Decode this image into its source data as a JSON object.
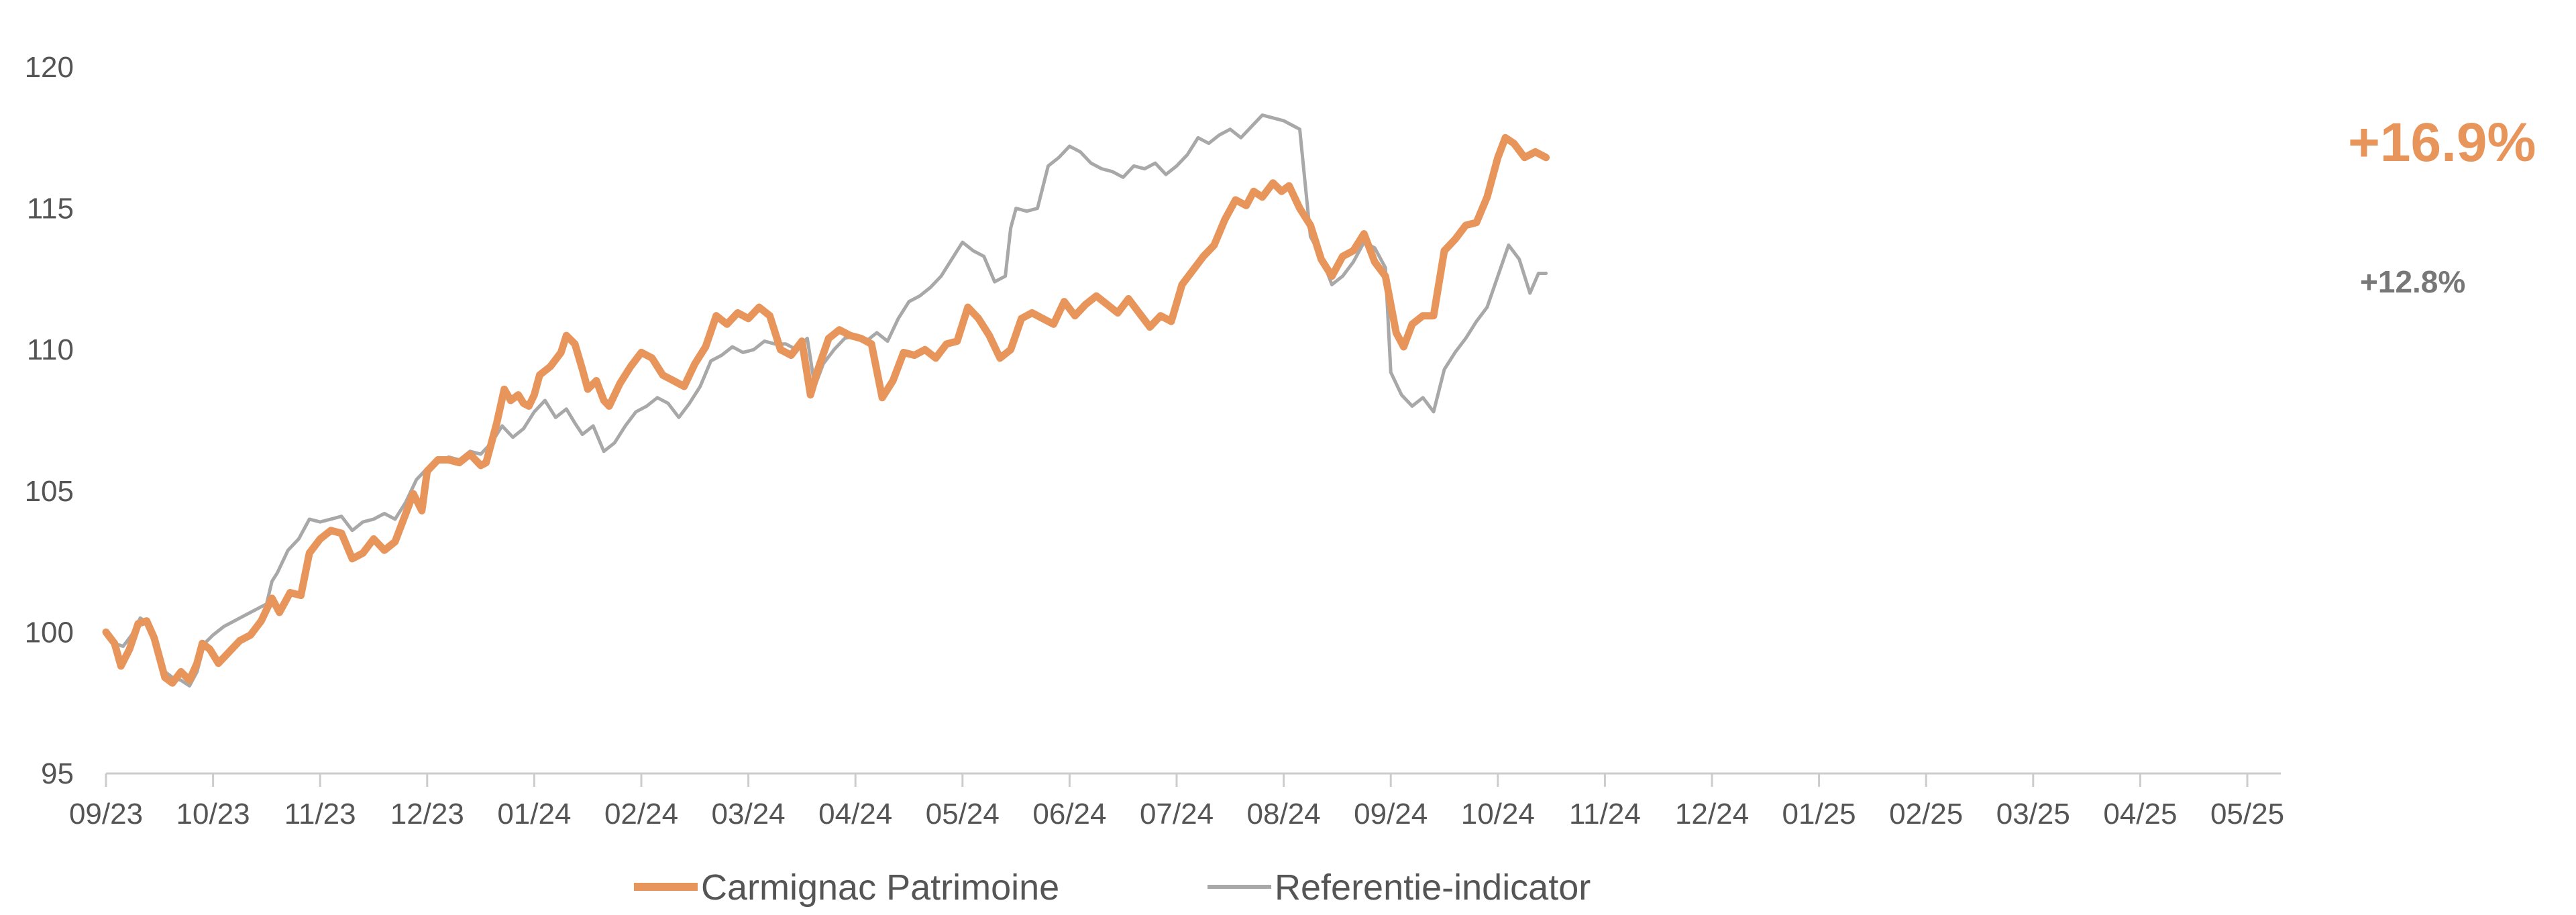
{
  "chart_data": {
    "type": "line",
    "title": "",
    "xlabel": "",
    "ylabel": "",
    "ylim": [
      95,
      120
    ],
    "yticks": [
      "95",
      "100",
      "105",
      "110",
      "115",
      "120"
    ],
    "xticks": [
      "09/23",
      "10/23",
      "11/23",
      "12/23",
      "01/24",
      "02/24",
      "03/24",
      "04/24",
      "05/24",
      "06/24",
      "07/24",
      "08/24",
      "09/24",
      "10/24",
      "11/24",
      "12/24",
      "01/25",
      "02/25",
      "03/25",
      "04/25",
      "05/25"
    ],
    "grid": false,
    "legend": "bottom",
    "series": [
      {
        "name": "Carmignac Patrimoine",
        "color": "#E8955C",
        "end_label": "+16.9%",
        "points": [
          [
            0,
            100
          ],
          [
            0.08,
            99.6
          ],
          [
            0.14,
            98.8
          ],
          [
            0.22,
            99.4
          ],
          [
            0.3,
            100.3
          ],
          [
            0.38,
            100.4
          ],
          [
            0.45,
            99.8
          ],
          [
            0.55,
            98.4
          ],
          [
            0.62,
            98.2
          ],
          [
            0.7,
            98.6
          ],
          [
            0.78,
            98.3
          ],
          [
            0.85,
            98.9
          ],
          [
            0.9,
            99.6
          ],
          [
            0.97,
            99.4
          ],
          [
            1.05,
            98.9
          ],
          [
            1.15,
            99.3
          ],
          [
            1.25,
            99.7
          ],
          [
            1.35,
            99.9
          ],
          [
            1.45,
            100.4
          ],
          [
            1.55,
            101.2
          ],
          [
            1.62,
            100.7
          ],
          [
            1.72,
            101.4
          ],
          [
            1.82,
            101.3
          ],
          [
            1.9,
            102.8
          ],
          [
            2.0,
            103.3
          ],
          [
            2.1,
            103.6
          ],
          [
            2.2,
            103.5
          ],
          [
            2.3,
            102.6
          ],
          [
            2.4,
            102.8
          ],
          [
            2.5,
            103.3
          ],
          [
            2.6,
            102.9
          ],
          [
            2.7,
            103.2
          ],
          [
            2.8,
            104.2
          ],
          [
            2.87,
            104.9
          ],
          [
            2.95,
            104.3
          ],
          [
            3.0,
            105.7
          ],
          [
            3.1,
            106.1
          ],
          [
            3.2,
            106.1
          ],
          [
            3.3,
            106.0
          ],
          [
            3.4,
            106.3
          ],
          [
            3.5,
            105.9
          ],
          [
            3.55,
            106.0
          ],
          [
            3.65,
            107.4
          ],
          [
            3.72,
            108.6
          ],
          [
            3.78,
            108.2
          ],
          [
            3.85,
            108.4
          ],
          [
            3.9,
            108.1
          ],
          [
            3.95,
            108.0
          ],
          [
            4.0,
            108.4
          ],
          [
            4.05,
            109.1
          ],
          [
            4.15,
            109.4
          ],
          [
            4.25,
            109.9
          ],
          [
            4.3,
            110.5
          ],
          [
            4.38,
            110.2
          ],
          [
            4.45,
            109.3
          ],
          [
            4.5,
            108.6
          ],
          [
            4.58,
            108.9
          ],
          [
            4.65,
            108.2
          ],
          [
            4.7,
            108.0
          ],
          [
            4.8,
            108.8
          ],
          [
            4.9,
            109.4
          ],
          [
            5.0,
            109.9
          ],
          [
            5.1,
            109.7
          ],
          [
            5.2,
            109.1
          ],
          [
            5.3,
            108.9
          ],
          [
            5.4,
            108.7
          ],
          [
            5.5,
            109.5
          ],
          [
            5.6,
            110.1
          ],
          [
            5.7,
            111.2
          ],
          [
            5.8,
            110.9
          ],
          [
            5.9,
            111.3
          ],
          [
            6.0,
            111.1
          ],
          [
            6.1,
            111.5
          ],
          [
            6.2,
            111.2
          ],
          [
            6.3,
            110.0
          ],
          [
            6.4,
            109.8
          ],
          [
            6.5,
            110.3
          ],
          [
            6.58,
            108.4
          ],
          [
            6.65,
            109.3
          ],
          [
            6.75,
            110.4
          ],
          [
            6.85,
            110.7
          ],
          [
            6.95,
            110.5
          ],
          [
            7.05,
            110.4
          ],
          [
            7.15,
            110.2
          ],
          [
            7.25,
            108.3
          ],
          [
            7.35,
            108.9
          ],
          [
            7.45,
            109.9
          ],
          [
            7.55,
            109.8
          ],
          [
            7.65,
            110.0
          ],
          [
            7.75,
            109.7
          ],
          [
            7.85,
            110.2
          ],
          [
            7.95,
            110.3
          ],
          [
            8.05,
            111.5
          ],
          [
            8.15,
            111.1
          ],
          [
            8.25,
            110.5
          ],
          [
            8.35,
            109.7
          ],
          [
            8.45,
            110.0
          ],
          [
            8.55,
            111.1
          ],
          [
            8.65,
            111.3
          ],
          [
            8.75,
            111.1
          ],
          [
            8.85,
            110.9
          ],
          [
            8.95,
            111.7
          ],
          [
            9.05,
            111.2
          ],
          [
            9.15,
            111.6
          ],
          [
            9.25,
            111.9
          ],
          [
            9.35,
            111.6
          ],
          [
            9.45,
            111.3
          ],
          [
            9.55,
            111.8
          ],
          [
            9.65,
            111.3
          ],
          [
            9.75,
            110.8
          ],
          [
            9.85,
            111.2
          ],
          [
            9.95,
            111.0
          ],
          [
            10.05,
            112.3
          ],
          [
            10.15,
            112.8
          ],
          [
            10.25,
            113.3
          ],
          [
            10.35,
            113.7
          ],
          [
            10.45,
            114.6
          ],
          [
            10.55,
            115.3
          ],
          [
            10.65,
            115.1
          ],
          [
            10.72,
            115.6
          ],
          [
            10.8,
            115.4
          ],
          [
            10.9,
            115.9
          ],
          [
            10.98,
            115.6
          ],
          [
            11.05,
            115.8
          ],
          [
            11.15,
            115.0
          ],
          [
            11.25,
            114.4
          ],
          [
            11.35,
            113.2
          ],
          [
            11.45,
            112.6
          ],
          [
            11.55,
            113.3
          ],
          [
            11.65,
            113.5
          ],
          [
            11.75,
            114.1
          ],
          [
            11.85,
            113.1
          ],
          [
            11.95,
            112.6
          ],
          [
            12.05,
            110.6
          ],
          [
            12.12,
            110.1
          ],
          [
            12.2,
            110.9
          ],
          [
            12.3,
            111.2
          ],
          [
            12.4,
            111.2
          ],
          [
            12.5,
            113.5
          ],
          [
            12.6,
            113.9
          ],
          [
            12.7,
            114.4
          ],
          [
            12.8,
            114.5
          ],
          [
            12.9,
            115.4
          ],
          [
            13.0,
            116.8
          ],
          [
            13.07,
            117.5
          ],
          [
            13.15,
            117.3
          ],
          [
            13.25,
            116.8
          ],
          [
            13.35,
            117.0
          ],
          [
            13.45,
            116.8
          ]
        ]
      },
      {
        "name": "Referentie-indicator",
        "color": "#A8A8A8",
        "end_label": "+12.8%",
        "points": [
          [
            0,
            99.9
          ],
          [
            0.08,
            99.6
          ],
          [
            0.16,
            99.5
          ],
          [
            0.24,
            99.9
          ],
          [
            0.32,
            100.5
          ],
          [
            0.4,
            100.3
          ],
          [
            0.48,
            99.5
          ],
          [
            0.55,
            98.6
          ],
          [
            0.62,
            98.4
          ],
          [
            0.7,
            98.3
          ],
          [
            0.78,
            98.1
          ],
          [
            0.85,
            98.6
          ],
          [
            0.92,
            99.6
          ],
          [
            1.0,
            99.9
          ],
          [
            1.1,
            100.2
          ],
          [
            1.2,
            100.4
          ],
          [
            1.3,
            100.6
          ],
          [
            1.4,
            100.8
          ],
          [
            1.5,
            101.0
          ],
          [
            1.55,
            101.8
          ],
          [
            1.6,
            102.1
          ],
          [
            1.7,
            102.9
          ],
          [
            1.8,
            103.3
          ],
          [
            1.9,
            104.0
          ],
          [
            2.0,
            103.9
          ],
          [
            2.1,
            104.0
          ],
          [
            2.2,
            104.1
          ],
          [
            2.3,
            103.6
          ],
          [
            2.4,
            103.9
          ],
          [
            2.5,
            104.0
          ],
          [
            2.6,
            104.2
          ],
          [
            2.7,
            104.0
          ],
          [
            2.8,
            104.6
          ],
          [
            2.9,
            105.4
          ],
          [
            3.0,
            105.8
          ],
          [
            3.1,
            106.0
          ],
          [
            3.2,
            106.2
          ],
          [
            3.3,
            106.1
          ],
          [
            3.4,
            106.4
          ],
          [
            3.5,
            106.3
          ],
          [
            3.6,
            106.7
          ],
          [
            3.7,
            107.3
          ],
          [
            3.8,
            106.9
          ],
          [
            3.9,
            107.2
          ],
          [
            4.0,
            107.8
          ],
          [
            4.1,
            108.2
          ],
          [
            4.2,
            107.6
          ],
          [
            4.3,
            107.9
          ],
          [
            4.38,
            107.4
          ],
          [
            4.45,
            107.0
          ],
          [
            4.55,
            107.3
          ],
          [
            4.65,
            106.4
          ],
          [
            4.75,
            106.7
          ],
          [
            4.85,
            107.3
          ],
          [
            4.95,
            107.8
          ],
          [
            5.05,
            108.0
          ],
          [
            5.15,
            108.3
          ],
          [
            5.25,
            108.1
          ],
          [
            5.35,
            107.6
          ],
          [
            5.45,
            108.1
          ],
          [
            5.55,
            108.7
          ],
          [
            5.65,
            109.6
          ],
          [
            5.75,
            109.8
          ],
          [
            5.85,
            110.1
          ],
          [
            5.95,
            109.9
          ],
          [
            6.05,
            110.0
          ],
          [
            6.15,
            110.3
          ],
          [
            6.25,
            110.2
          ],
          [
            6.35,
            110.2
          ],
          [
            6.45,
            110.0
          ],
          [
            6.55,
            110.4
          ],
          [
            6.62,
            108.7
          ],
          [
            6.7,
            109.5
          ],
          [
            6.8,
            110.0
          ],
          [
            6.9,
            110.4
          ],
          [
            7.0,
            110.5
          ],
          [
            7.1,
            110.3
          ],
          [
            7.2,
            110.6
          ],
          [
            7.3,
            110.3
          ],
          [
            7.4,
            111.1
          ],
          [
            7.5,
            111.7
          ],
          [
            7.6,
            111.9
          ],
          [
            7.7,
            112.2
          ],
          [
            7.8,
            112.6
          ],
          [
            7.9,
            113.2
          ],
          [
            8.0,
            113.8
          ],
          [
            8.1,
            113.5
          ],
          [
            8.2,
            113.3
          ],
          [
            8.3,
            112.4
          ],
          [
            8.4,
            112.6
          ],
          [
            8.45,
            114.3
          ],
          [
            8.5,
            115.0
          ],
          [
            8.6,
            114.9
          ],
          [
            8.7,
            115.0
          ],
          [
            8.8,
            116.5
          ],
          [
            8.9,
            116.8
          ],
          [
            9.0,
            117.2
          ],
          [
            9.1,
            117.0
          ],
          [
            9.2,
            116.6
          ],
          [
            9.3,
            116.4
          ],
          [
            9.4,
            116.3
          ],
          [
            9.5,
            116.1
          ],
          [
            9.6,
            116.5
          ],
          [
            9.7,
            116.4
          ],
          [
            9.8,
            116.6
          ],
          [
            9.9,
            116.2
          ],
          [
            10.0,
            116.5
          ],
          [
            10.1,
            116.9
          ],
          [
            10.2,
            117.5
          ],
          [
            10.3,
            117.3
          ],
          [
            10.4,
            117.6
          ],
          [
            10.5,
            117.8
          ],
          [
            10.6,
            117.5
          ],
          [
            10.7,
            117.9
          ],
          [
            10.8,
            118.3
          ],
          [
            10.9,
            118.2
          ],
          [
            11.0,
            118.1
          ],
          [
            11.1,
            117.9
          ],
          [
            11.15,
            117.8
          ],
          [
            11.25,
            114.0
          ],
          [
            11.35,
            113.3
          ],
          [
            11.45,
            112.3
          ],
          [
            11.55,
            112.6
          ],
          [
            11.65,
            113.1
          ],
          [
            11.75,
            113.8
          ],
          [
            11.85,
            113.6
          ],
          [
            11.95,
            112.9
          ],
          [
            12.0,
            109.2
          ],
          [
            12.1,
            108.4
          ],
          [
            12.2,
            108.0
          ],
          [
            12.3,
            108.3
          ],
          [
            12.4,
            107.8
          ],
          [
            12.5,
            109.3
          ],
          [
            12.6,
            109.9
          ],
          [
            12.7,
            110.4
          ],
          [
            12.8,
            111.0
          ],
          [
            12.9,
            111.5
          ],
          [
            13.0,
            112.6
          ],
          [
            13.1,
            113.7
          ],
          [
            13.2,
            113.2
          ],
          [
            13.3,
            112.0
          ],
          [
            13.38,
            112.7
          ],
          [
            13.45,
            112.7
          ]
        ]
      }
    ]
  }
}
